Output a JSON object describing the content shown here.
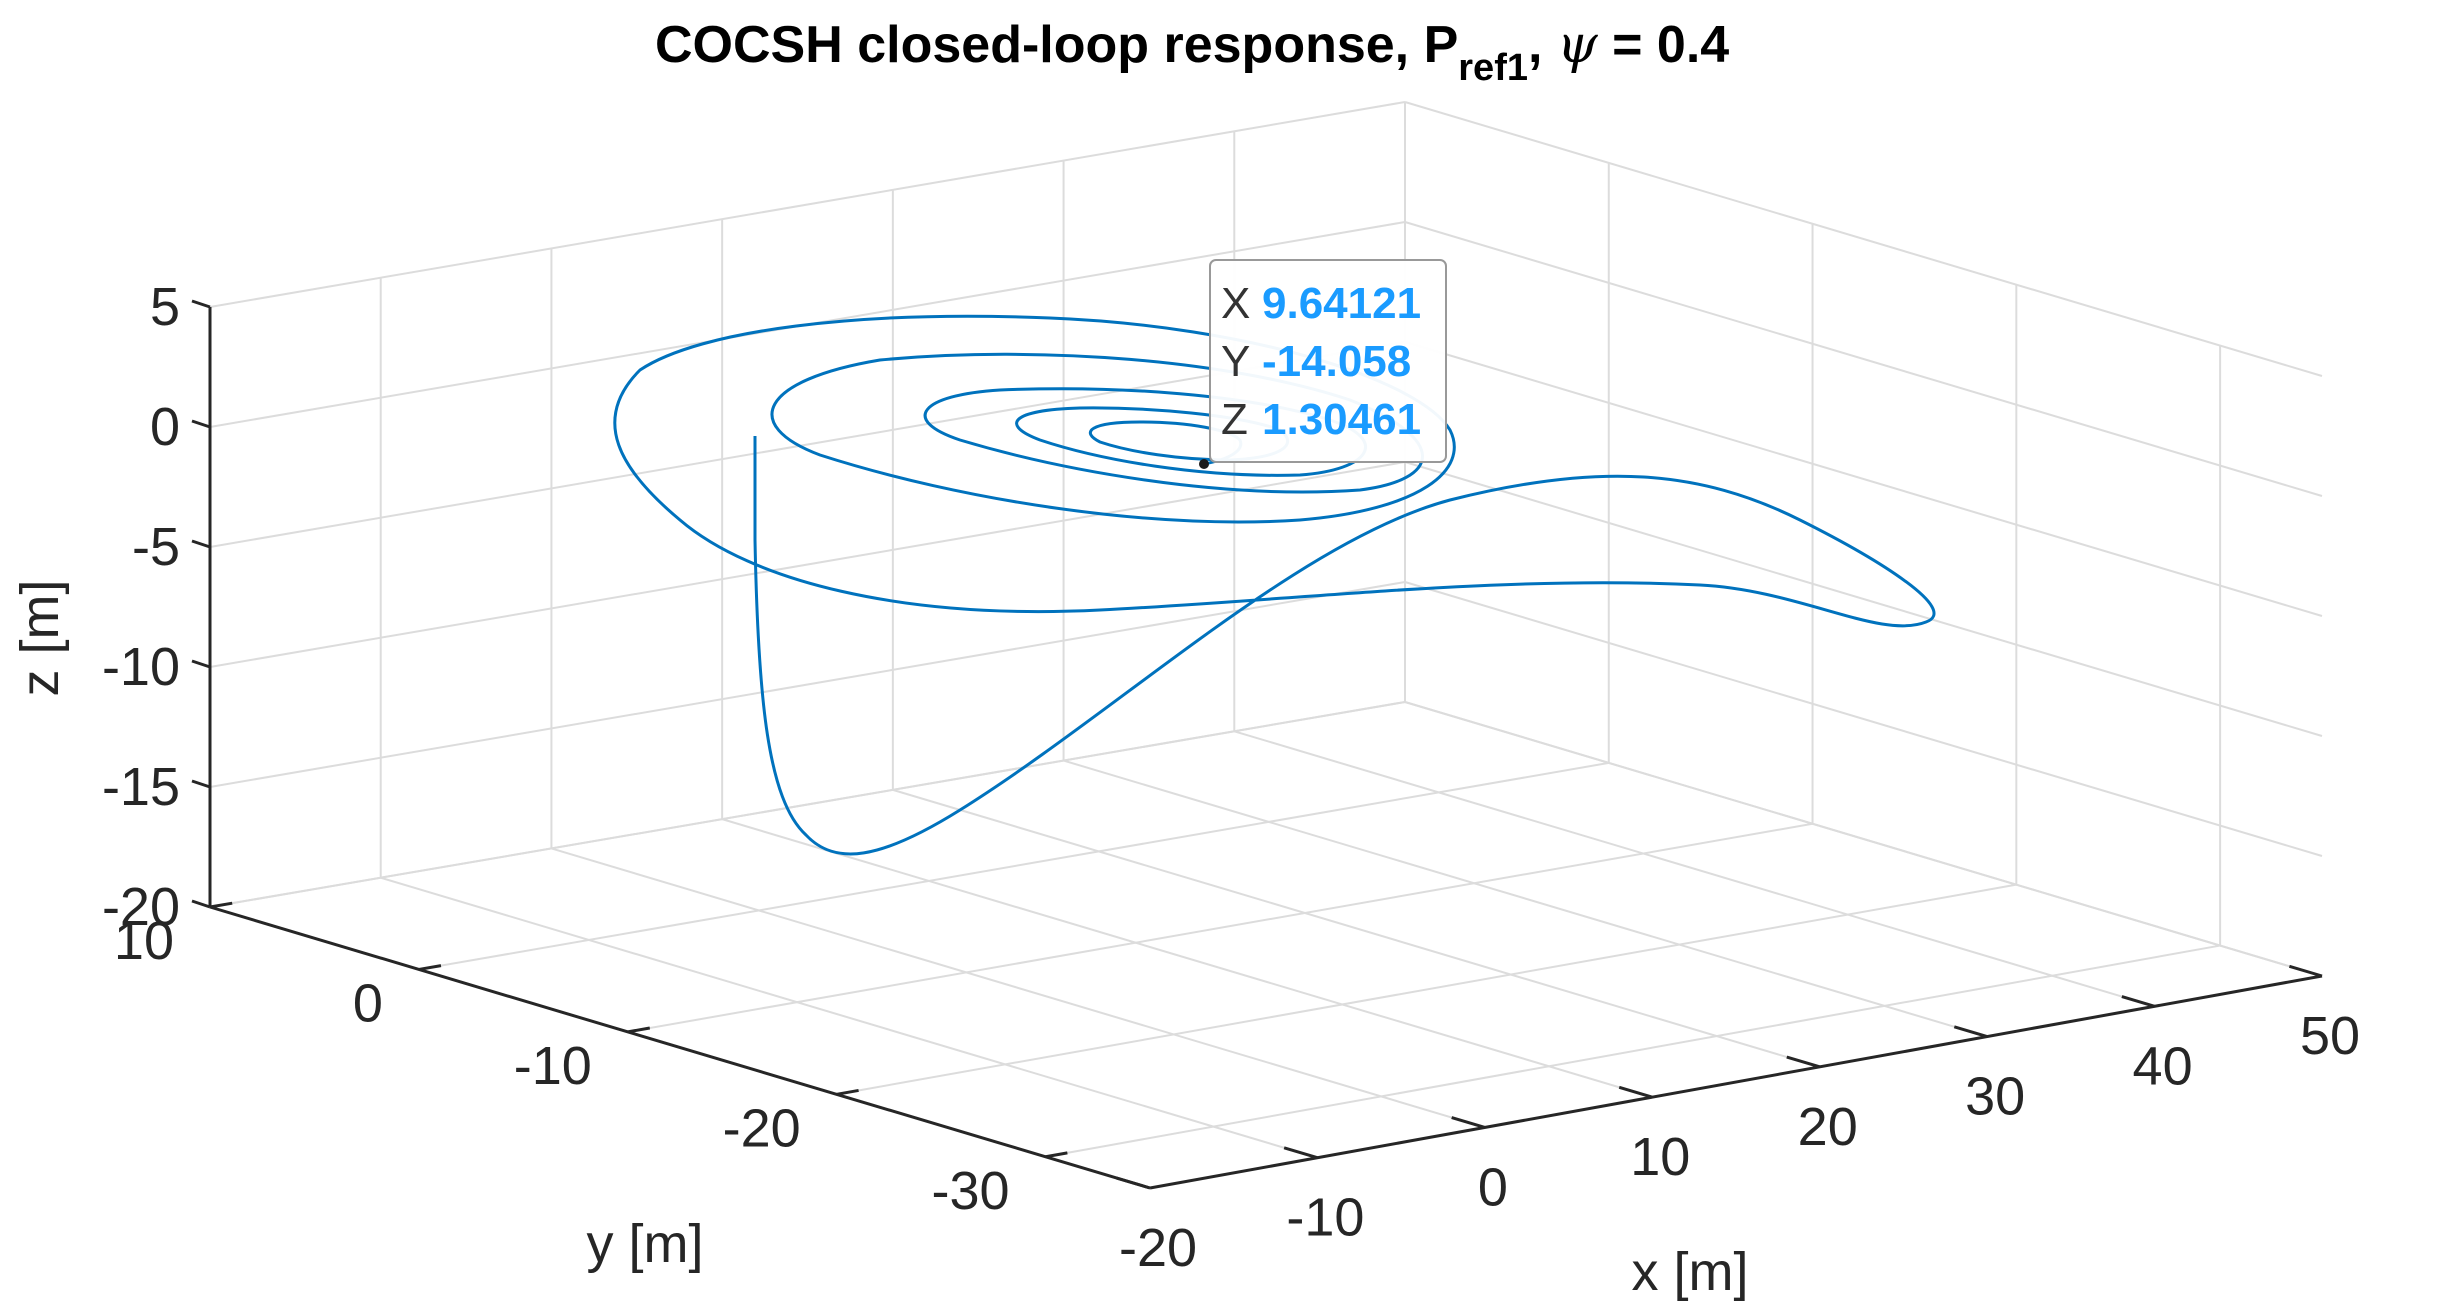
{
  "chart_data": {
    "type": "line3d",
    "title": "COCSH closed-loop response, P",
    "title_subscript": "ref1",
    "title_suffix_sep": ", ",
    "title_symbol": "ψ",
    "title_value": " = 0.4",
    "xlabel": "x [m]",
    "ylabel": "y [m]",
    "zlabel": "z [m]",
    "xlim": [
      -20,
      50
    ],
    "ylim": [
      -35,
      10
    ],
    "zlim": [
      -20,
      5
    ],
    "xticks": [
      "-20",
      "-10",
      "0",
      "10",
      "20",
      "30",
      "40",
      "50"
    ],
    "yticks": [
      "10",
      "0",
      "-10",
      "-20",
      "-30"
    ],
    "zticks": [
      "5",
      "0",
      "-5",
      "-10",
      "-15",
      "-20"
    ],
    "grid": true,
    "series": [
      {
        "name": "trajectory",
        "color": "#0072BD",
        "description": "spiral descent converging toward the datatip point"
      }
    ],
    "datatip": {
      "x_label": "X",
      "x_value": "9.64121",
      "y_label": "Y",
      "y_value": "-14.058",
      "z_label": "Z",
      "z_value": "1.30461",
      "value_color": "#1a9bff"
    }
  }
}
